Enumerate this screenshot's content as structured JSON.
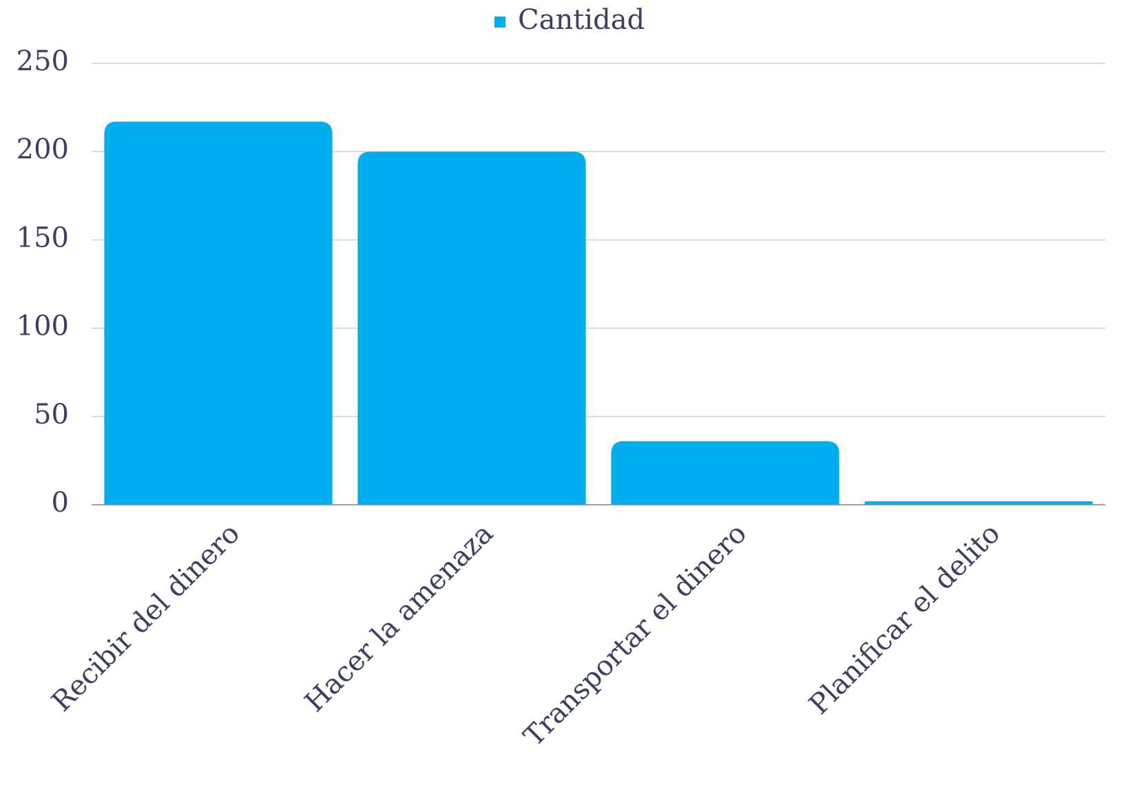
{
  "chart_data": {
    "type": "bar",
    "categories": [
      "Recibir del dinero",
      "Hacer la amenaza",
      "Transportar el dinero",
      "Planificar el delito"
    ],
    "series": [
      {
        "name": "Cantidad",
        "color": "#00adee",
        "values": [
          217,
          200,
          36,
          2
        ]
      }
    ],
    "ylim": [
      0,
      250
    ],
    "yticks": [
      0,
      50,
      100,
      150,
      200,
      250
    ],
    "grid": true,
    "legend": "top"
  }
}
